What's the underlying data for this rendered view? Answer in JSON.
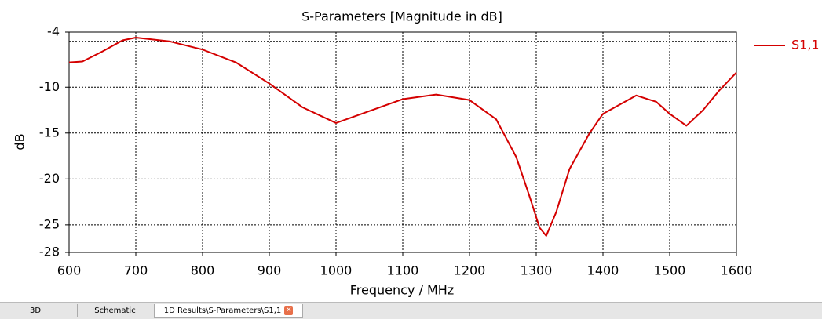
{
  "chart_data": {
    "type": "line",
    "title": "S-Parameters [Magnitude in dB]",
    "x_label": "Frequency / MHz",
    "y_label": "dB",
    "x": [
      600,
      620,
      650,
      680,
      700,
      750,
      800,
      850,
      900,
      950,
      1000,
      1050,
      1100,
      1150,
      1200,
      1240,
      1270,
      1290,
      1305,
      1315,
      1330,
      1350,
      1380,
      1400,
      1450,
      1480,
      1500,
      1525,
      1550,
      1575,
      1600
    ],
    "series": [
      {
        "name": "S1,1",
        "color": "#d40000",
        "values": [
          -7.3,
          -7.2,
          -6.1,
          -4.9,
          -4.6,
          -5.0,
          -5.9,
          -7.3,
          -9.6,
          -12.2,
          -13.9,
          -12.6,
          -11.3,
          -10.8,
          -11.4,
          -13.5,
          -17.6,
          -21.9,
          -25.3,
          -26.2,
          -23.6,
          -18.9,
          -15.0,
          -12.9,
          -10.9,
          -11.6,
          -12.9,
          -14.2,
          -12.5,
          -10.3,
          -8.4
        ]
      }
    ],
    "xlim": [
      600,
      1600
    ],
    "xticks": [
      600,
      700,
      800,
      900,
      1000,
      1100,
      1200,
      1300,
      1400,
      1500,
      1600
    ],
    "ylim": [
      -28,
      -4
    ],
    "yticks": [
      -4,
      -10,
      -15,
      -20,
      -25,
      -28
    ],
    "ygrid": [
      -5,
      -10,
      -15,
      -20,
      -25
    ],
    "grid": true,
    "legend": "right"
  },
  "tabs": [
    "3D",
    "Schematic",
    "1D Results\\S-Parameters\\S1,1"
  ]
}
